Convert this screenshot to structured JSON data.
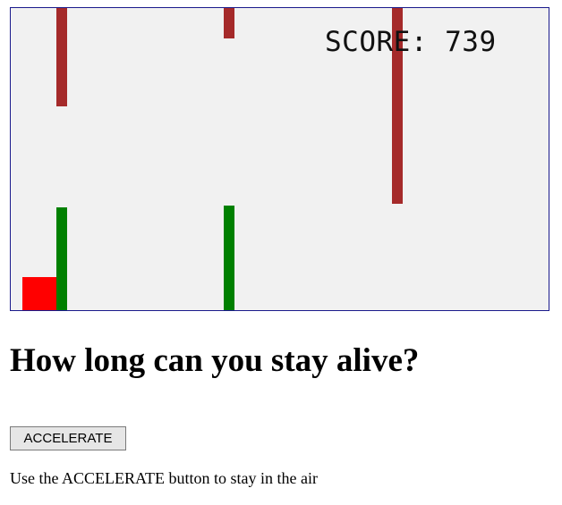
{
  "game": {
    "score_label": "SCORE",
    "score_value": "739",
    "score_text": "SCORE: 739",
    "colors": {
      "canvas_background": "#f1f1f1",
      "canvas_border": "#1a1a8c",
      "top_obstacle": "#a52a2a",
      "bottom_obstacle": "#008000",
      "player": "#ff0000"
    }
  },
  "page": {
    "headline": "How long can you stay alive?",
    "accelerate_label": "ACCELERATE",
    "instructions": "Use the ACCELERATE button to stay in the air"
  }
}
